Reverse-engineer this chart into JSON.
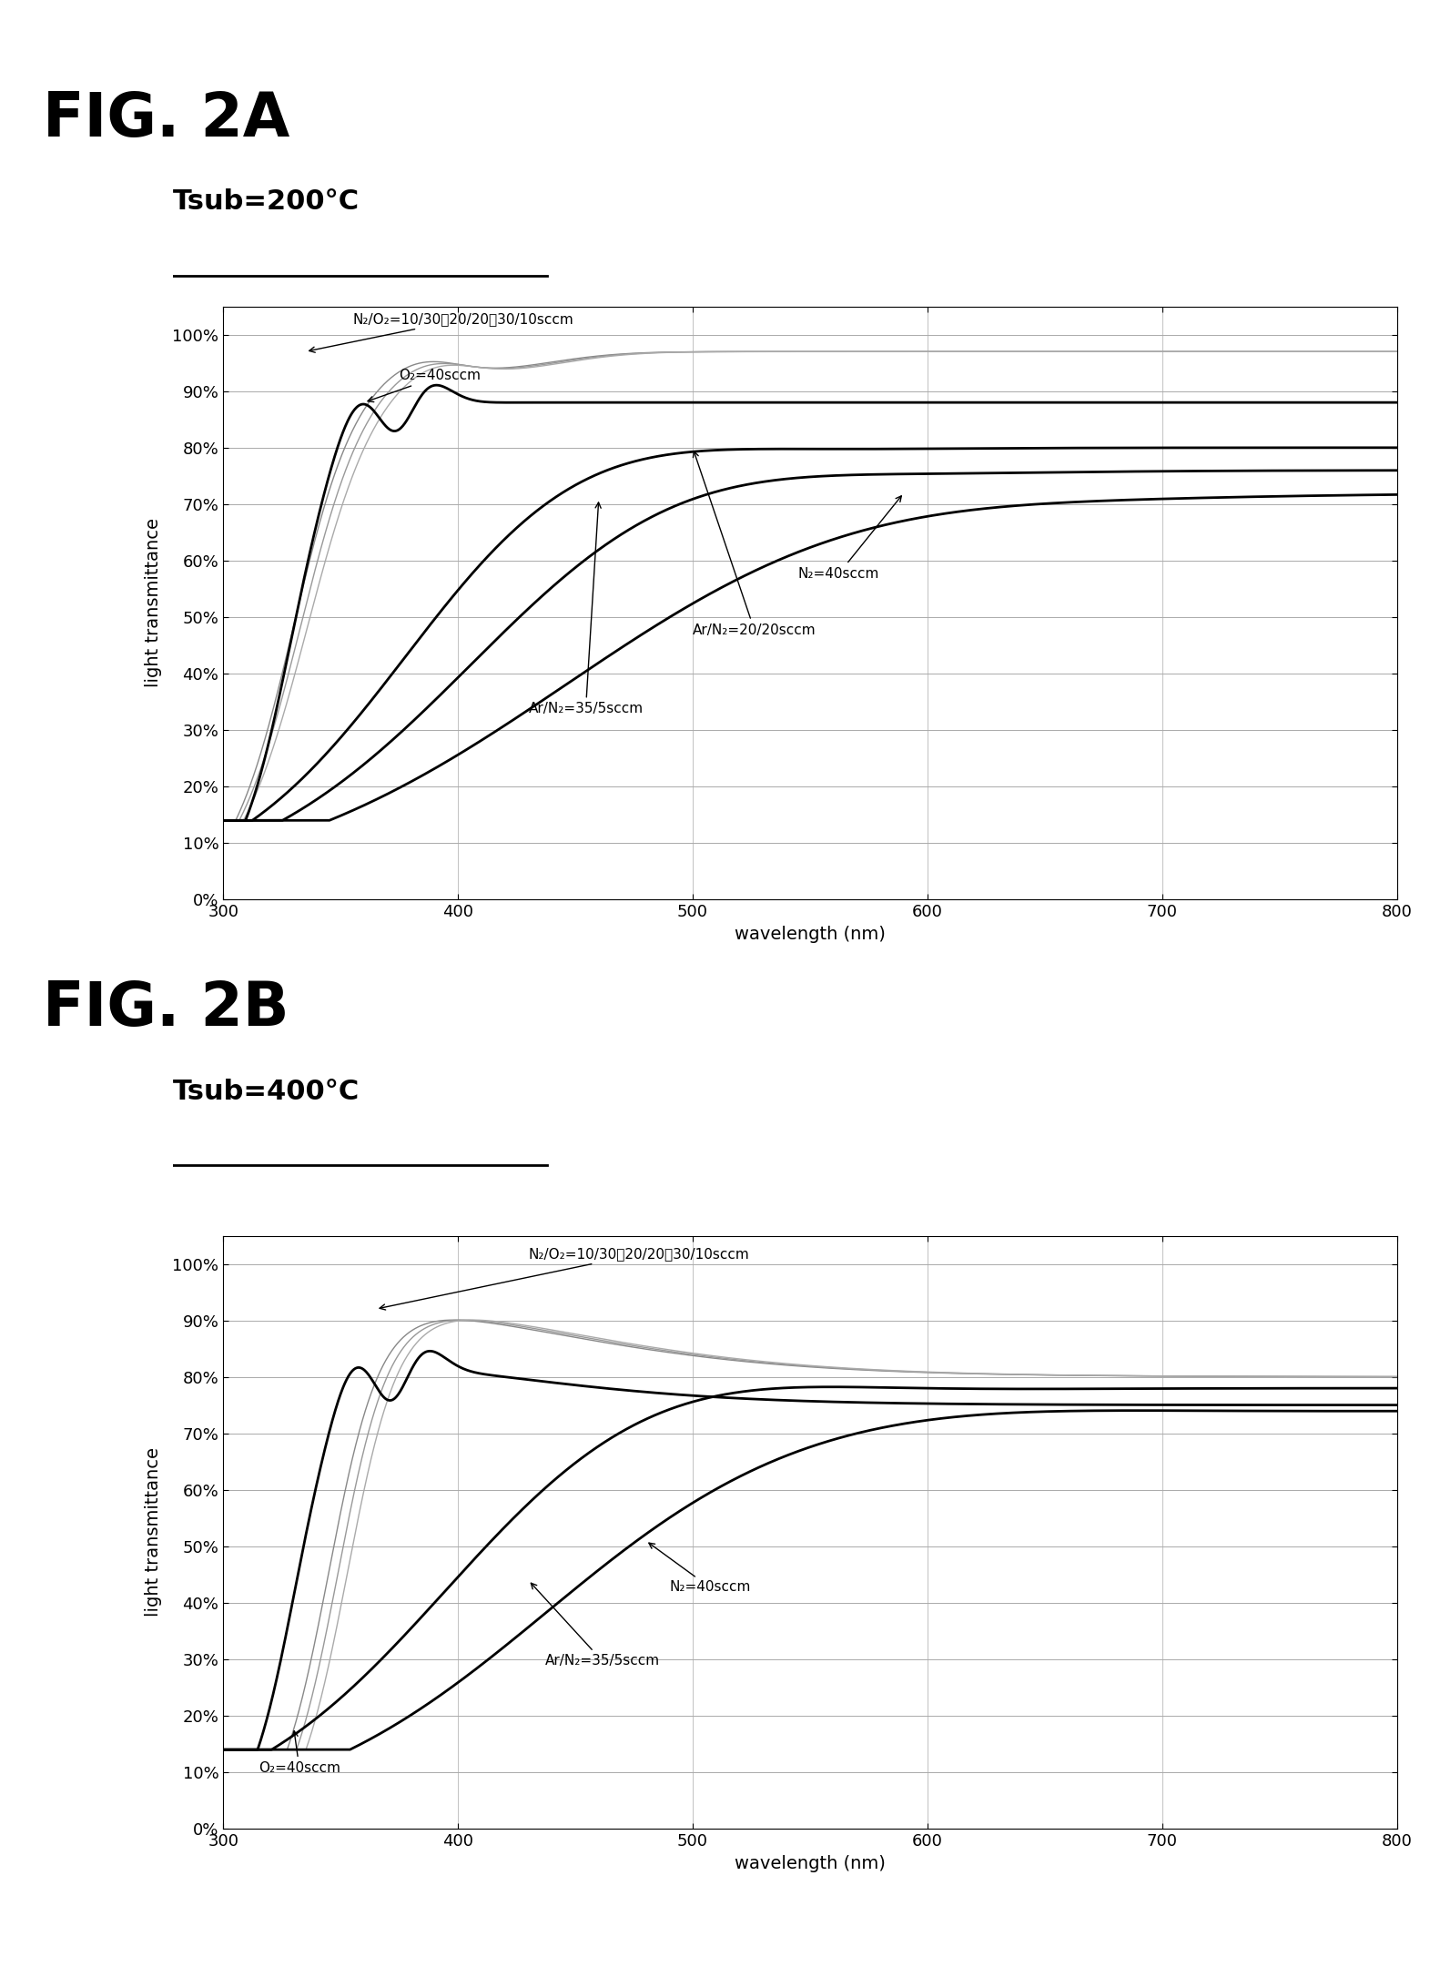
{
  "fig_title_a": "FIG. 2A",
  "fig_title_b": "FIG. 2B",
  "subtitle_a": "Tsub=200°C",
  "subtitle_b": "Tsub=400°C",
  "xlabel": "wavelength (nm)",
  "ylabel": "light transmittance",
  "xlim": [
    300,
    800
  ],
  "yticks": [
    0,
    10,
    20,
    30,
    40,
    50,
    60,
    70,
    80,
    90,
    100
  ],
  "ytick_labels": [
    "0%",
    "10%",
    "20%",
    "30%",
    "40%",
    "50%",
    "60%",
    "70%",
    "80%",
    "90%",
    "100%"
  ],
  "xticks": [
    300,
    400,
    500,
    600,
    700,
    800
  ],
  "background_color": "#ffffff",
  "annot_a_N2O2": "N₂/O₂=10/30、20/20、30/10sccm",
  "annot_a_O2": "O₂=40sccm",
  "annot_a_N2": "N₂=40sccm",
  "annot_a_ArN2_2020": "Ar/N₂=20/20sccm",
  "annot_a_ArN2_3505": "Ar/N₂=35/5sccm",
  "annot_b_N2O2": "N₂/O₂=10/30、20/20、30/10sccm",
  "annot_b_N2": "N₂=40sccm",
  "annot_b_ArN2": "Ar/N₂=35/5sccm",
  "annot_b_O2": "O₂=40sccm"
}
